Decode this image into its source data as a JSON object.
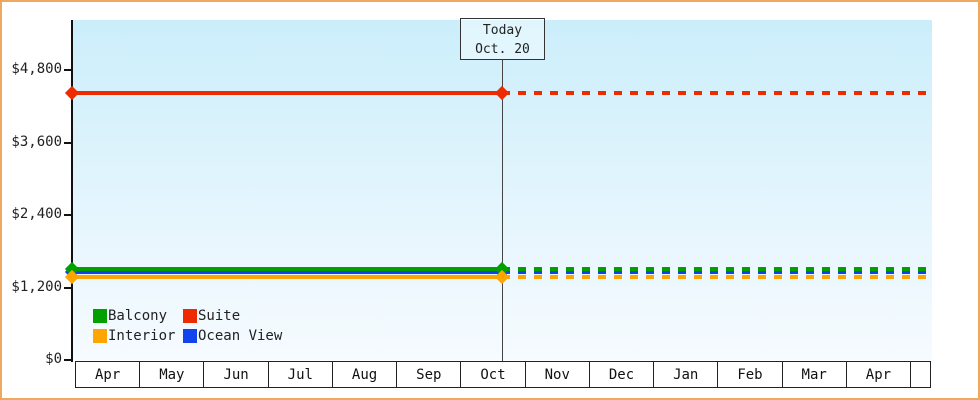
{
  "chart_data": {
    "type": "line",
    "title": "",
    "xlabel": "",
    "ylabel": "",
    "grid": false,
    "ylim": [
      0,
      5630
    ],
    "y_ticks": [
      {
        "value": 0,
        "label": "$0"
      },
      {
        "value": 1200,
        "label": "$1,200"
      },
      {
        "value": 2400,
        "label": "$2,400"
      },
      {
        "value": 3600,
        "label": "$3,600"
      },
      {
        "value": 4800,
        "label": "$4,800"
      }
    ],
    "x_categories": [
      "Apr",
      "May",
      "Jun",
      "Jul",
      "Aug",
      "Sep",
      "Oct",
      "Nov",
      "Dec",
      "Jan",
      "Feb",
      "Mar",
      "Apr",
      ""
    ],
    "series": [
      {
        "name": "Suite",
        "color": "#ee2b00",
        "value": 4420,
        "style": "solid-then-dashed"
      },
      {
        "name": "Ocean View",
        "color": "#1244ee",
        "value": 1460,
        "style": "solid-then-dashed"
      },
      {
        "name": "Balcony",
        "color": "#00a000",
        "value": 1515,
        "style": "solid-then-dashed"
      },
      {
        "name": "Interior",
        "color": "#ffa500",
        "value": 1370,
        "style": "solid-then-dashed"
      }
    ],
    "today_marker": {
      "line1": "Today",
      "line2": "Oct. 20",
      "month_index": 6,
      "day_fraction": 0.645
    },
    "legend": {
      "position": "bottom-left",
      "items": [
        {
          "label": "Balcony",
          "color": "#00a000"
        },
        {
          "label": "Suite",
          "color": "#ee2b00"
        },
        {
          "label": "Interior",
          "color": "#ffa500"
        },
        {
          "label": "Ocean View",
          "color": "#1244ee"
        }
      ]
    }
  },
  "colors": {
    "frame_border": "#edaa5f",
    "plot_bg_top": "#cbeefb",
    "plot_bg_bottom": "#f6fbff",
    "axis": "#111111",
    "text": "#222222",
    "today_line": "#444444"
  }
}
